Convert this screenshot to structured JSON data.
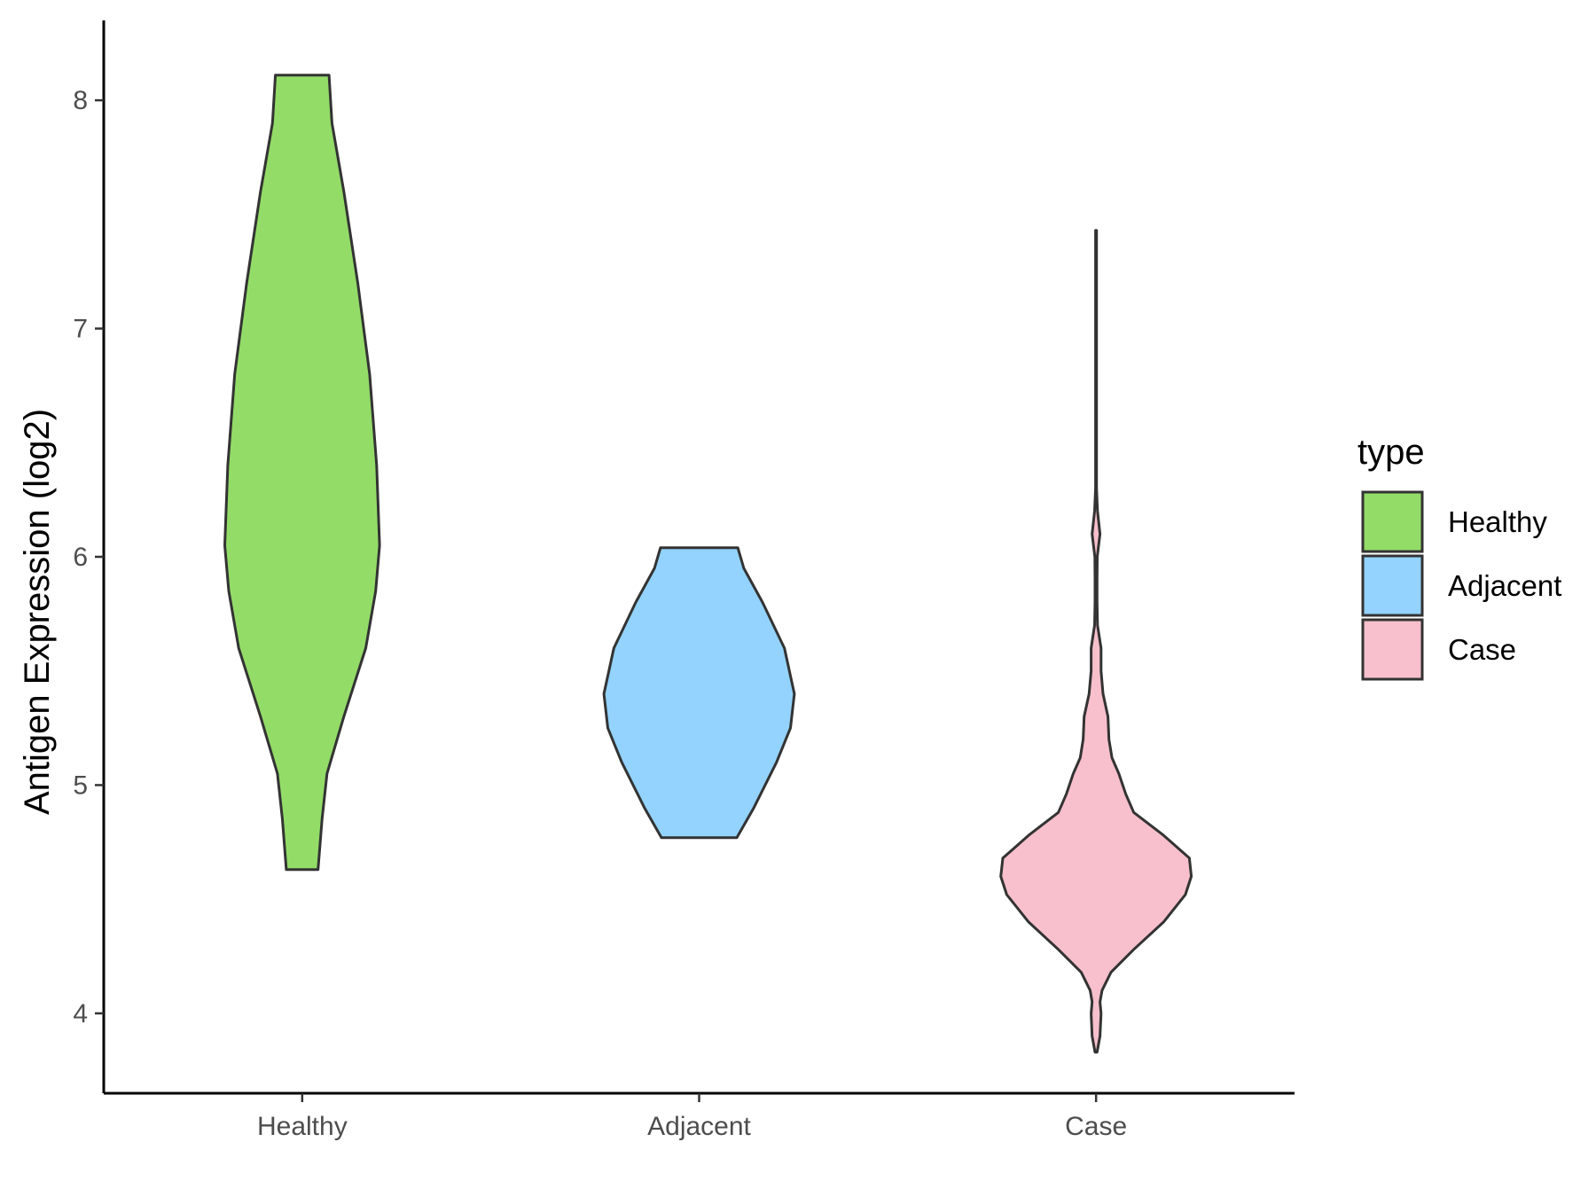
{
  "chart_data": {
    "type": "violin",
    "title": "",
    "xlabel": "",
    "ylabel": "Antigen Expression (log2)",
    "categories": [
      "Healthy",
      "Adjacent",
      "Case"
    ],
    "yticks": [
      "4",
      "5",
      "6",
      "7",
      "8"
    ],
    "ylim": [
      3.65,
      8.35
    ],
    "legend": {
      "title": "type",
      "placement": "right",
      "entries": [
        "Healthy",
        "Adjacent",
        "Case"
      ]
    },
    "colors": {
      "Healthy": "#93dc68",
      "Adjacent": "#93d3fd",
      "Case": "#f7c0cc",
      "outline": "#333333"
    },
    "series": [
      {
        "name": "Healthy",
        "min": 4.63,
        "max": 8.11,
        "profile": [
          [
            4.63,
            0.16
          ],
          [
            4.85,
            0.2
          ],
          [
            5.05,
            0.25
          ],
          [
            5.3,
            0.42
          ],
          [
            5.6,
            0.64
          ],
          [
            5.85,
            0.74
          ],
          [
            6.05,
            0.78
          ],
          [
            6.4,
            0.75
          ],
          [
            6.8,
            0.68
          ],
          [
            7.2,
            0.56
          ],
          [
            7.6,
            0.42
          ],
          [
            7.9,
            0.3
          ],
          [
            8.11,
            0.27
          ]
        ]
      },
      {
        "name": "Adjacent",
        "min": 4.77,
        "max": 6.04,
        "profile": [
          [
            4.77,
            0.38
          ],
          [
            4.9,
            0.55
          ],
          [
            5.1,
            0.78
          ],
          [
            5.25,
            0.92
          ],
          [
            5.4,
            0.96
          ],
          [
            5.6,
            0.86
          ],
          [
            5.8,
            0.64
          ],
          [
            5.95,
            0.45
          ],
          [
            6.04,
            0.39
          ]
        ]
      },
      {
        "name": "Case",
        "min": 3.83,
        "max": 7.43,
        "profile": [
          [
            3.83,
            0.01
          ],
          [
            3.9,
            0.04
          ],
          [
            4.0,
            0.05
          ],
          [
            4.05,
            0.04
          ],
          [
            4.1,
            0.06
          ],
          [
            4.18,
            0.15
          ],
          [
            4.28,
            0.38
          ],
          [
            4.4,
            0.68
          ],
          [
            4.52,
            0.9
          ],
          [
            4.6,
            0.96
          ],
          [
            4.68,
            0.94
          ],
          [
            4.78,
            0.68
          ],
          [
            4.88,
            0.38
          ],
          [
            4.96,
            0.3
          ],
          [
            5.05,
            0.23
          ],
          [
            5.12,
            0.16
          ],
          [
            5.2,
            0.13
          ],
          [
            5.3,
            0.12
          ],
          [
            5.4,
            0.07
          ],
          [
            5.5,
            0.05
          ],
          [
            5.6,
            0.05
          ],
          [
            5.7,
            0.015
          ],
          [
            5.8,
            0.01
          ],
          [
            5.9,
            0.01
          ],
          [
            6.0,
            0.012
          ],
          [
            6.1,
            0.04
          ],
          [
            6.2,
            0.015
          ],
          [
            6.3,
            0.005
          ],
          [
            6.6,
            0.005
          ],
          [
            7.43,
            0.005
          ]
        ]
      }
    ]
  }
}
